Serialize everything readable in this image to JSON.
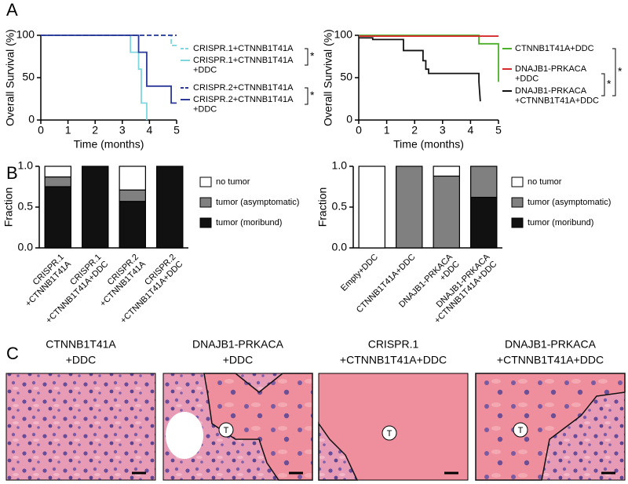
{
  "panel_labels": [
    "A",
    "B",
    "C"
  ],
  "chart_data": [
    {
      "type": "line",
      "xlabel": "Time (months)",
      "ylabel": "Overall Survival (%)",
      "xlim": [
        0,
        5
      ],
      "ylim": [
        0,
        100
      ],
      "xticks": [
        0,
        1,
        2,
        3,
        4,
        5
      ],
      "yticks": [
        0,
        50,
        100
      ],
      "series": [
        {
          "name": "CRISPR.1+CTNNB1T41A",
          "color": "#7fd6de",
          "linestyle": "dashed",
          "x": [
            0,
            4.8,
            4.8,
            5
          ],
          "values": [
            100,
            100,
            88,
            88
          ]
        },
        {
          "name": "CRISPR.1+CTNNB1T41A+DDC",
          "color": "#7fd6de",
          "linestyle": "solid",
          "x": [
            0,
            3.3,
            3.3,
            3.6,
            3.6,
            3.7,
            3.7,
            3.9,
            3.9
          ],
          "values": [
            100,
            100,
            80,
            80,
            60,
            60,
            20,
            20,
            0
          ]
        },
        {
          "name": "CRISPR.2+CTNNB1T41A",
          "color": "#2a3898",
          "linestyle": "dashed",
          "x": [
            0,
            5
          ],
          "values": [
            100,
            100
          ]
        },
        {
          "name": "CRISPR.2+CTNNB1T41A+DDC",
          "color": "#2a3898",
          "linestyle": "solid",
          "x": [
            0,
            3.6,
            3.6,
            3.9,
            3.9,
            4.8,
            4.8,
            5
          ],
          "values": [
            100,
            100,
            80,
            80,
            40,
            40,
            20,
            20
          ]
        }
      ],
      "annotations": [
        "*",
        "*"
      ]
    },
    {
      "type": "line",
      "xlabel": "Time (months)",
      "ylabel": "Overall Survival (%)",
      "xlim": [
        0,
        5
      ],
      "ylim": [
        0,
        100
      ],
      "xticks": [
        0,
        1,
        2,
        3,
        4,
        5
      ],
      "yticks": [
        0,
        50,
        100
      ],
      "series": [
        {
          "name": "CTNNB1T41A+DDC",
          "color": "#4caf2a",
          "linestyle": "solid",
          "x": [
            0,
            4.3,
            4.3,
            5,
            5
          ],
          "values": [
            100,
            100,
            90,
            90,
            45
          ]
        },
        {
          "name": "DNAJB1-PRKACA+DDC",
          "color": "#d42a2a",
          "linestyle": "solid",
          "x": [
            0,
            5
          ],
          "values": [
            99,
            99
          ]
        },
        {
          "name": "DNAJB1-PRKACA+CTNNB1T41A+DDC",
          "color": "#111111",
          "linestyle": "solid",
          "x": [
            0,
            0.5,
            0.5,
            1.6,
            1.6,
            2.3,
            2.3,
            2.4,
            2.4,
            2.5,
            2.5,
            4.3,
            4.3,
            4.35
          ],
          "values": [
            97,
            97,
            95,
            95,
            82,
            82,
            70,
            70,
            60,
            60,
            55,
            55,
            45,
            22
          ]
        }
      ],
      "annotations": [
        "*",
        "*"
      ]
    },
    {
      "type": "bar",
      "stacked": true,
      "ylabel": "Fraction",
      "ylim": [
        0,
        1
      ],
      "yticks": [
        {
          "value": 0,
          "label": "0.0"
        },
        {
          "value": 0.5,
          "label": "0.5"
        },
        {
          "value": 1,
          "label": "1.0"
        }
      ],
      "categories": [
        "CRISPR.1+CTNNB1T41A",
        "CRISPR.1+CTNNB1T41A+DDC",
        "CRISPR.2+CTNNB1T41A",
        "CRISPR.2+CTNNB1T41A+DDC"
      ],
      "series": [
        {
          "name": "tumor (moribund)",
          "color": "#111111",
          "values": [
            0.75,
            1,
            0.57,
            1
          ]
        },
        {
          "name": "tumor (asymptomatic)",
          "color": "#808080",
          "values": [
            0.12,
            0,
            0.14,
            0
          ]
        },
        {
          "name": "no tumor",
          "color": "#ffffff",
          "values": [
            0.13,
            0,
            0.29,
            0
          ]
        }
      ]
    },
    {
      "type": "bar",
      "stacked": true,
      "ylabel": "Fraction",
      "ylim": [
        0,
        1
      ],
      "yticks": [
        {
          "value": 0,
          "label": "0.0"
        },
        {
          "value": 0.5,
          "label": "0.5"
        },
        {
          "value": 1,
          "label": "1.0"
        }
      ],
      "categories": [
        "Empty+DDC",
        "CTNNB1T41A+DDC",
        "DNAJB1-PRKACA+DDC",
        "DNAJB1-PRKACA+CTNNB1T41A+DDC"
      ],
      "series": [
        {
          "name": "tumor (moribund)",
          "color": "#111111",
          "values": [
            0,
            0,
            0,
            0.62
          ]
        },
        {
          "name": "tumor (asymptomatic)",
          "color": "#808080",
          "values": [
            0,
            1,
            0.88,
            0.38
          ]
        },
        {
          "name": "no tumor",
          "color": "#ffffff",
          "values": [
            1,
            0,
            0.12,
            0
          ]
        }
      ]
    }
  ],
  "histology": [
    {
      "title": [
        "CTNNB1T41A",
        "+DDC"
      ]
    },
    {
      "title": [
        "DNAJB1-PRKACA",
        "+DDC"
      ],
      "marker": "T"
    },
    {
      "title": [
        "CRISPR.1",
        "+CTNNB1T41A+DDC"
      ],
      "marker": "T"
    },
    {
      "title": [
        "DNAJB1-PRKACA",
        "+CTNNB1T41A+DDC"
      ],
      "marker": "T"
    }
  ]
}
